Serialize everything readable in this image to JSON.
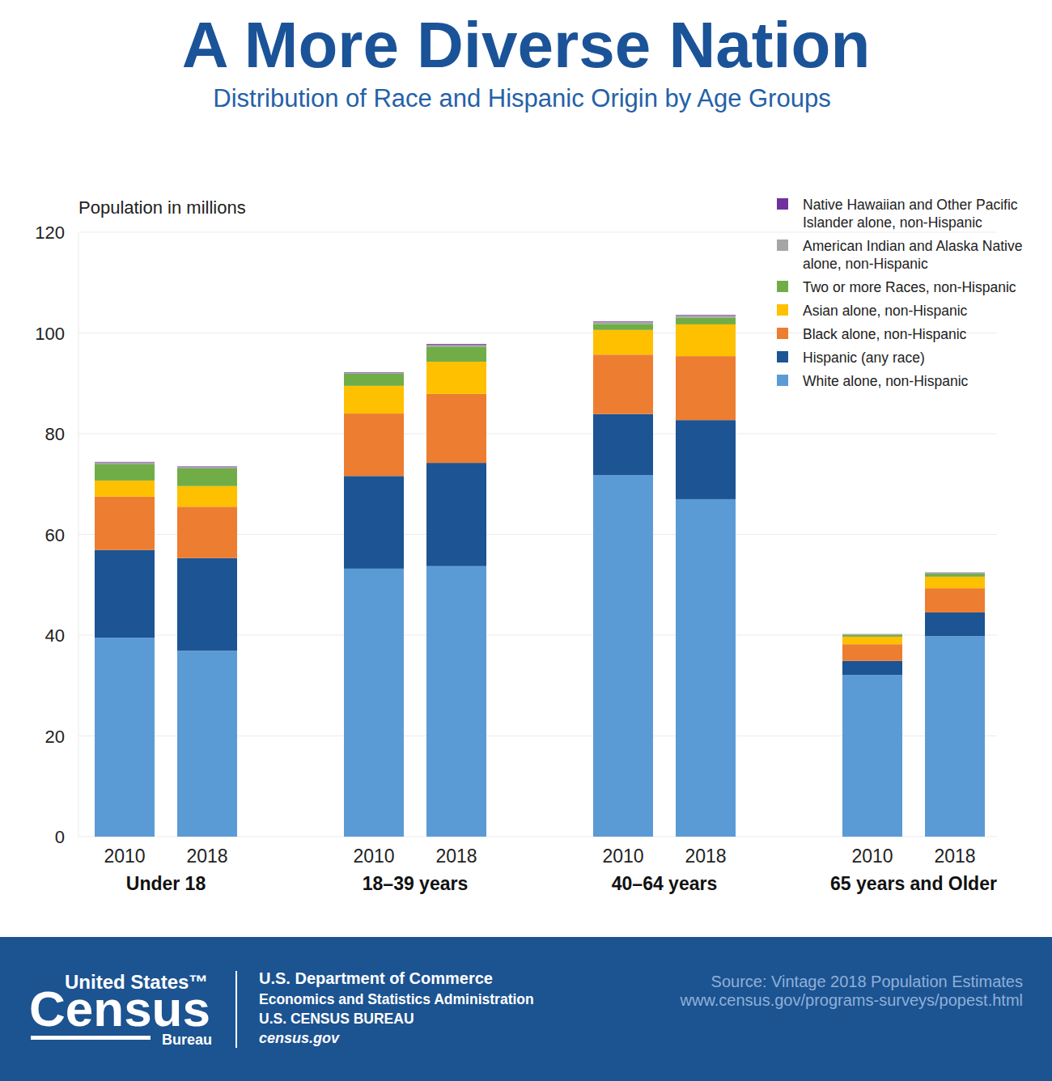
{
  "chart_data": {
    "type": "bar",
    "title": "A More Diverse Nation",
    "subtitle": "Distribution of Race and Hispanic Origin by Age Groups",
    "y_label": "Population in millions",
    "stacked": true,
    "grid": true,
    "legend": "top-right",
    "ylim": [
      0,
      120
    ],
    "yticks": [
      0,
      20,
      40,
      60,
      80,
      100,
      120
    ],
    "groups": [
      "Under 18",
      "18–39 years",
      "40–64 years",
      "65 years and Older"
    ],
    "categories": [
      "2010",
      "2018",
      "2010",
      "2018",
      "2010",
      "2018",
      "2010",
      "2018"
    ],
    "series": [
      {
        "name": "White alone, non-Hispanic",
        "color": "#5b9bd5",
        "values": [
          39.5,
          36.9,
          53.2,
          53.7,
          71.8,
          67.0,
          32.1,
          39.8
        ]
      },
      {
        "name": "Hispanic (any race)",
        "color": "#1c5494",
        "values": [
          17.4,
          18.4,
          18.4,
          20.5,
          12.1,
          15.7,
          2.8,
          4.7
        ]
      },
      {
        "name": "Black alone, non-Hispanic",
        "color": "#ed7d31",
        "values": [
          10.6,
          10.2,
          12.4,
          13.7,
          11.8,
          12.7,
          3.3,
          4.8
        ]
      },
      {
        "name": "Asian alone, non-Hispanic",
        "color": "#ffc000",
        "values": [
          3.2,
          4.1,
          5.5,
          6.4,
          4.9,
          6.3,
          1.5,
          2.3
        ]
      },
      {
        "name": "Two or more Races, non-Hispanic",
        "color": "#70ad47",
        "values": [
          3.2,
          3.5,
          2.4,
          3.0,
          1.2,
          1.3,
          0.4,
          0.6
        ]
      },
      {
        "name": "American Indian and Alaska Native alone, non-Hispanic",
        "color": "#a5a5a5",
        "values": [
          0.4,
          0.3,
          0.2,
          0.3,
          0.4,
          0.5,
          0.1,
          0.2
        ]
      },
      {
        "name": "Native Hawaiian and Other Pacific Islander alone, non-Hispanic",
        "color": "#7030a0",
        "values": [
          0.1,
          0.1,
          0.1,
          0.2,
          0.1,
          0.1,
          0.03,
          0.05
        ]
      }
    ]
  },
  "footer": {
    "logo_top": "United States™",
    "logo_main": "Census",
    "logo_bottom": "Bureau",
    "department": "U.S. Department of Commerce",
    "administration": "Economics and Statistics Administration",
    "bureau": "U.S. CENSUS BUREAU",
    "website": "census.gov",
    "source": "Source: Vintage 2018 Population Estimates",
    "source_url": "www.census.gov/programs-surveys/popest.html"
  }
}
